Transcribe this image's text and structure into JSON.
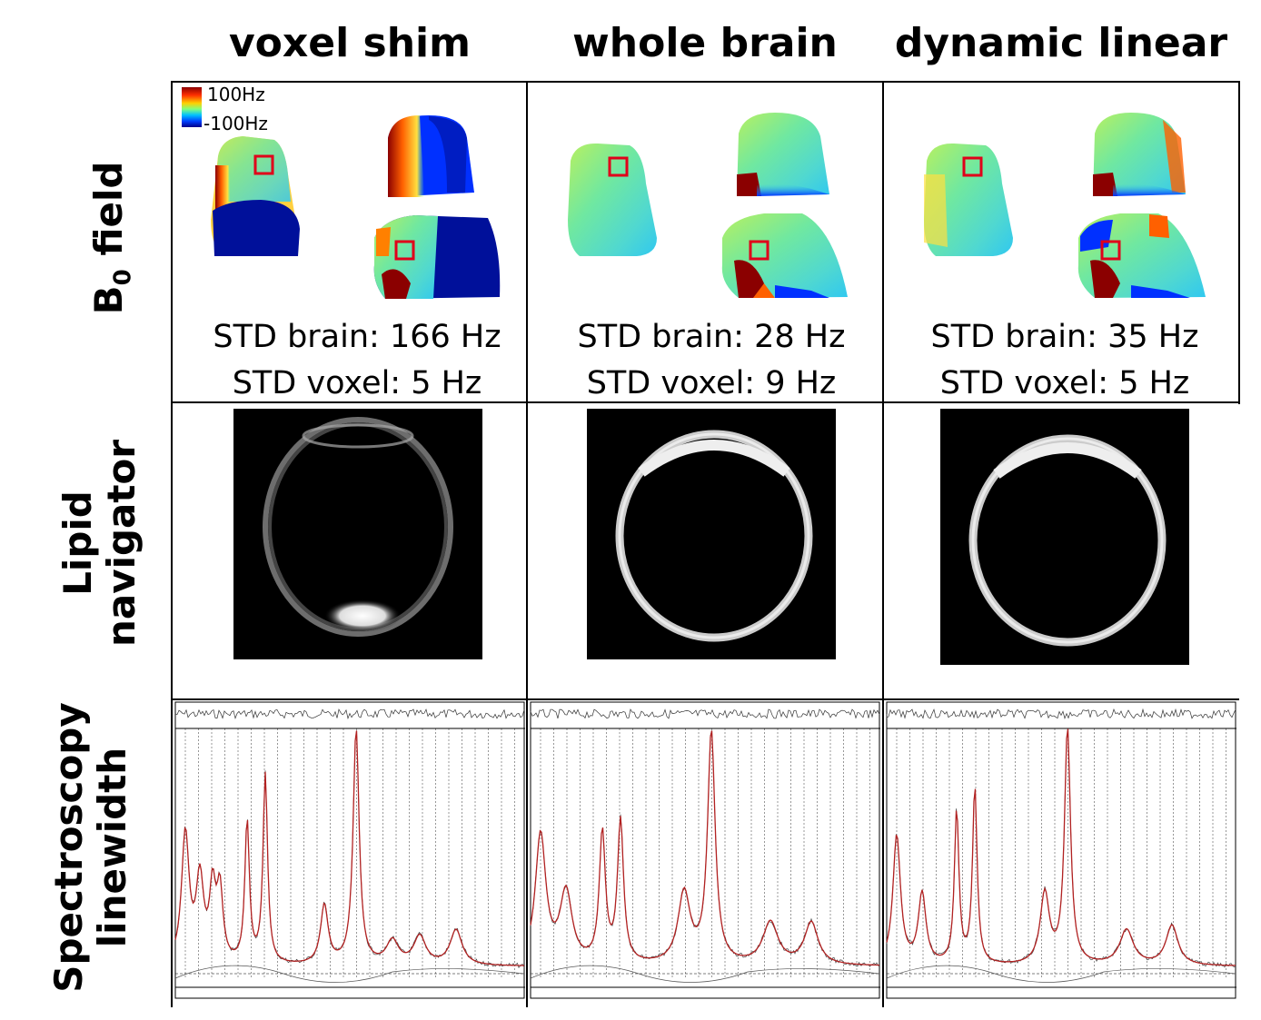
{
  "columns": [
    {
      "title": "voxel shim",
      "std_brain": "STD brain: 166 Hz",
      "std_voxel": "STD voxel: 5 Hz"
    },
    {
      "title": "whole brain",
      "std_brain": "STD brain: 28 Hz",
      "std_voxel": "STD voxel: 9 Hz"
    },
    {
      "title": "dynamic linear",
      "std_brain": "STD brain: 35 Hz",
      "std_voxel": "STD voxel: 5 Hz"
    }
  ],
  "rows": {
    "b0": {
      "label": "B",
      "sub": "0",
      "rest": " field"
    },
    "lipid": {
      "line1": "Lipid",
      "line2": "navigator"
    },
    "spec": {
      "line1": "Spectroscopy",
      "line2": "linewidth"
    }
  },
  "colorbar": {
    "max_label": "100Hz",
    "min_label": "-100Hz"
  },
  "colors": {
    "fit_line": "#b22222",
    "grid": "#555555",
    "roi_box": "#e0001a"
  }
}
